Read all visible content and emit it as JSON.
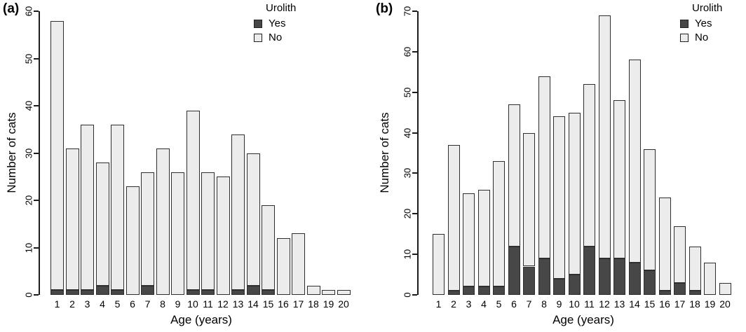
{
  "chart_data": [
    {
      "type": "bar",
      "stacked": true,
      "panel": "a",
      "panel_label": "(a)",
      "xlabel": "Age (years)",
      "ylabel": "Number of cats",
      "categories": [
        "1",
        "2",
        "3",
        "4",
        "5",
        "6",
        "7",
        "8",
        "9",
        "10",
        "11",
        "12",
        "13",
        "14",
        "15",
        "16",
        "17",
        "18",
        "19",
        "20"
      ],
      "series": [
        {
          "name": "Yes",
          "color": "#474747",
          "values": [
            1,
            1,
            1,
            2,
            1,
            0,
            2,
            0,
            0,
            1,
            1,
            0,
            1,
            2,
            1,
            0,
            0,
            0,
            0,
            0
          ]
        },
        {
          "name": "No",
          "color": "#ececec",
          "values": [
            57,
            30,
            35,
            26,
            35,
            23,
            24,
            31,
            26,
            38,
            25,
            25,
            33,
            28,
            18,
            12,
            13,
            2,
            1,
            1
          ]
        }
      ],
      "totals": [
        58,
        31,
        36,
        28,
        36,
        23,
        26,
        31,
        26,
        39,
        26,
        25,
        34,
        30,
        19,
        12,
        13,
        2,
        1,
        1
      ],
      "ylim": [
        0,
        60
      ],
      "yticks": [
        0,
        10,
        20,
        30,
        40,
        50,
        60
      ],
      "grid": "off",
      "legend_title": "Urolith",
      "legend_position": "top-right-inside"
    },
    {
      "type": "bar",
      "stacked": true,
      "panel": "b",
      "panel_label": "(b)",
      "xlabel": "Age (years)",
      "ylabel": "Number of cats",
      "categories": [
        "1",
        "2",
        "3",
        "4",
        "5",
        "6",
        "7",
        "8",
        "9",
        "10",
        "11",
        "12",
        "13",
        "14",
        "15",
        "16",
        "17",
        "18",
        "19",
        "20"
      ],
      "series": [
        {
          "name": "Yes",
          "color": "#474747",
          "values": [
            0,
            1,
            2,
            2,
            2,
            12,
            7,
            9,
            4,
            5,
            12,
            9,
            9,
            8,
            6,
            1,
            3,
            1,
            0,
            0
          ]
        },
        {
          "name": "No",
          "color": "#ececec",
          "values": [
            15,
            36,
            23,
            24,
            31,
            35,
            33,
            45,
            40,
            40,
            40,
            60,
            39,
            50,
            30,
            23,
            14,
            11,
            8,
            3
          ]
        }
      ],
      "totals": [
        15,
        37,
        25,
        26,
        33,
        47,
        40,
        54,
        44,
        45,
        52,
        69,
        48,
        58,
        36,
        24,
        17,
        12,
        8,
        3
      ],
      "ylim": [
        0,
        70
      ],
      "yticks": [
        0,
        10,
        20,
        30,
        40,
        50,
        60,
        70
      ],
      "grid": "off",
      "legend_title": "Urolith",
      "legend_position": "top-right-inside"
    }
  ]
}
